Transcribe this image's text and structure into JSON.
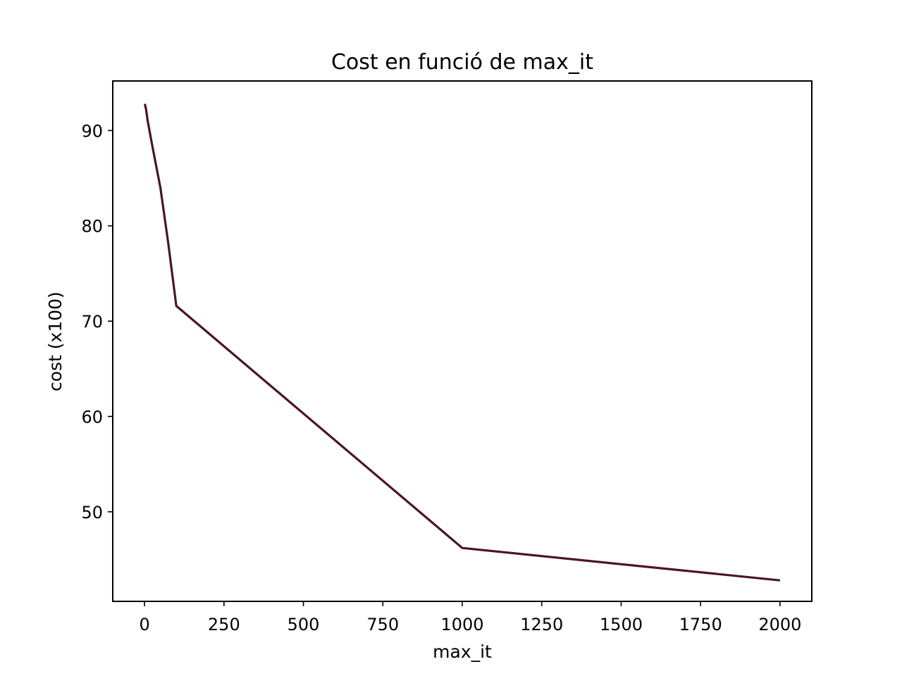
{
  "chart_data": {
    "type": "line",
    "title": "Cost en funció de max_it",
    "xlabel": "max_it",
    "ylabel": "cost (x100)",
    "xlim": [
      -100,
      2100
    ],
    "ylim": [
      40.6,
      95.2
    ],
    "xticks": [
      0,
      250,
      500,
      750,
      1000,
      1250,
      1500,
      1750,
      2000
    ],
    "yticks": [
      50,
      60,
      70,
      80,
      90
    ],
    "grid": false,
    "line_color": "#4a1525",
    "series": [
      {
        "x": [
          1,
          5,
          10,
          25,
          50,
          75,
          100,
          1000,
          2000
        ],
        "y": [
          92.8,
          92.2,
          91.0,
          88.3,
          84.0,
          78.1,
          71.6,
          46.2,
          42.8
        ]
      }
    ]
  }
}
